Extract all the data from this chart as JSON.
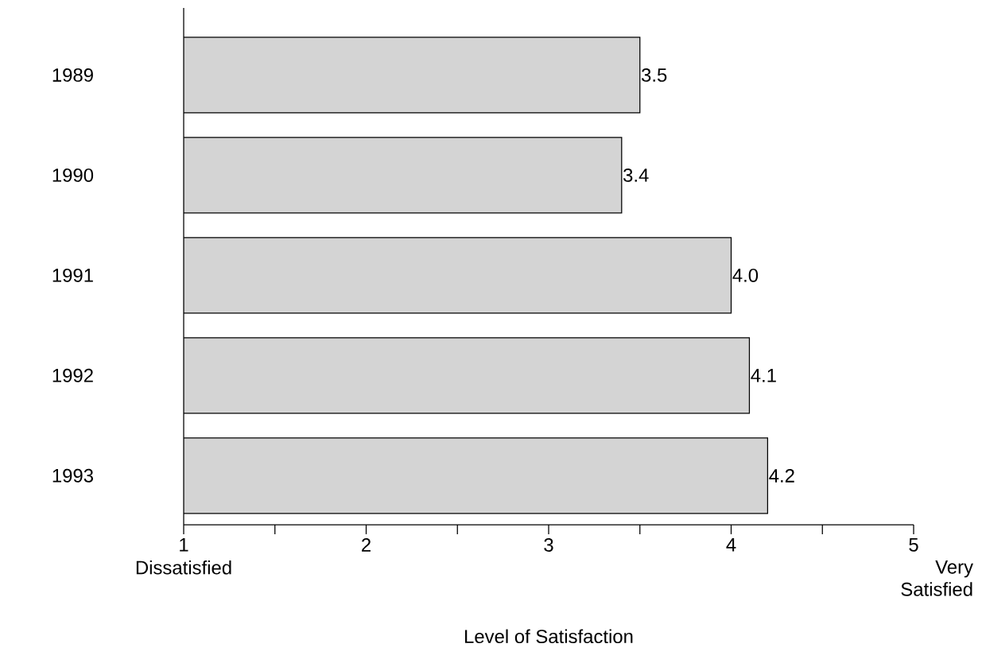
{
  "chart_data": {
    "type": "bar",
    "orientation": "horizontal",
    "xlabel": "Level of Satisfaction",
    "categories": [
      "1989",
      "1990",
      "1991",
      "1992",
      "1993"
    ],
    "values": [
      3.5,
      3.4,
      4.0,
      4.1,
      4.2
    ],
    "color": "#d4d4d4",
    "xlim": [
      1,
      5
    ],
    "xticks": [
      1,
      {
        "value": 1.5,
        "label": null
      },
      2,
      {
        "value": 2.5,
        "label": null
      },
      3,
      {
        "value": 3.5,
        "label": null
      },
      4,
      {
        "value": 4.5,
        "label": null
      },
      5
    ],
    "value_labels": [
      "3.5",
      "3.4",
      "4.0",
      "4.1",
      "4.2"
    ],
    "annotations": [
      "Dissatisfied",
      "Very Satisfied"
    ]
  }
}
